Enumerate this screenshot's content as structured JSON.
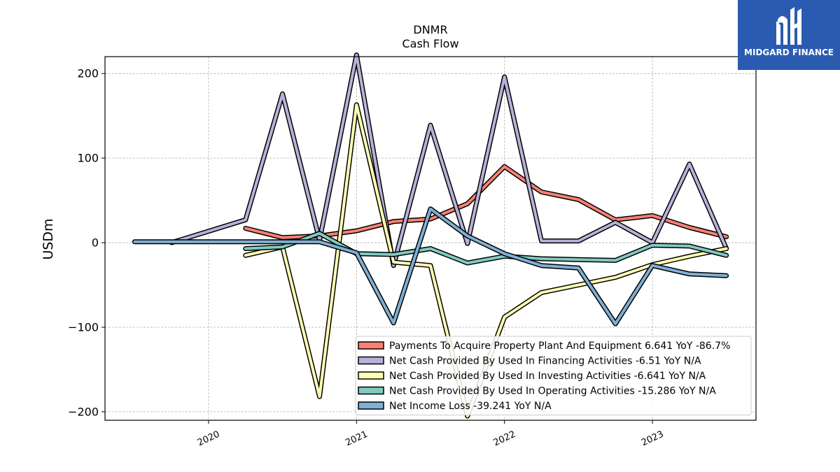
{
  "brand": {
    "name": "MIDGARD FINANCE",
    "logo_icon": "midgard-logo-icon",
    "color": "#2a5bb0"
  },
  "chart_data": {
    "type": "line",
    "title": "DNMR",
    "subtitle": "Cash Flow",
    "ylabel": "USDm",
    "xlabel": "",
    "ylim": [
      -210,
      220
    ],
    "xlim": [
      2019.3,
      2023.7
    ],
    "yticks": [
      -200,
      -100,
      0,
      100,
      200
    ],
    "ytick_labels": [
      "−200",
      "−100",
      "0",
      "100",
      "200"
    ],
    "xticks": [
      2020,
      2021,
      2022,
      2023
    ],
    "xtick_labels": [
      "2020",
      "2021",
      "2022",
      "2023"
    ],
    "grid": true,
    "legend_position": "lower-right",
    "series": [
      {
        "name": "Payments To Acquire Property Plant And Equipment  6.641 YoY -86.7%",
        "color": "#fa8072",
        "x": [
          2020.25,
          2020.5,
          2020.75,
          2021.0,
          2021.25,
          2021.5,
          2021.75,
          2022.0,
          2022.25,
          2022.5,
          2022.75,
          2023.0,
          2023.25,
          2023.5
        ],
        "y": [
          17,
          6,
          8,
          14,
          25,
          28,
          46,
          90,
          60,
          51,
          27,
          32,
          18,
          7
        ]
      },
      {
        "name": "Net Cash Provided By Used In Financing Activities  -6.51 YoY N/A",
        "color": "#b7b2d9",
        "x": [
          2019.75,
          2020.25,
          2020.5,
          2020.75,
          2021.0,
          2021.25,
          2021.5,
          2021.75,
          2022.0,
          2022.25,
          2022.5,
          2022.75,
          2023.0,
          2023.25,
          2023.5
        ],
        "y": [
          0,
          27,
          176,
          3,
          222,
          -27,
          139,
          -1,
          196,
          2,
          2,
          24,
          0,
          93,
          -7
        ]
      },
      {
        "name": "Net Cash Provided By Used In Investing Activities  -6.641 YoY N/A",
        "color": "#ffffb3",
        "x": [
          2020.25,
          2020.5,
          2020.75,
          2021.0,
          2021.25,
          2021.5,
          2021.75,
          2022.0,
          2022.25,
          2022.5,
          2022.75,
          2023.0,
          2023.25,
          2023.5
        ],
        "y": [
          -15,
          -5,
          -182,
          163,
          -23,
          -27,
          -205,
          -88,
          -59,
          -50,
          -41,
          -26,
          -16,
          -7
        ]
      },
      {
        "name": "Net Cash Provided By Used In Operating Activities  -15.286 YoY N/A",
        "color": "#80cbc0",
        "x": [
          2020.25,
          2020.5,
          2020.75,
          2021.0,
          2021.25,
          2021.5,
          2021.75,
          2022.0,
          2022.25,
          2022.5,
          2022.75,
          2023.0,
          2023.25,
          2023.5
        ],
        "y": [
          -7,
          -5,
          11,
          -13,
          -14,
          -7,
          -24,
          -16,
          -19,
          -20,
          -21,
          -3,
          -4,
          -15
        ]
      },
      {
        "name": "Net Income Loss  -39.241 YoY N/A",
        "color": "#7fb0d5",
        "x": [
          2019.5,
          2020.75,
          2021.0,
          2021.25,
          2021.5,
          2021.75,
          2022.0,
          2022.25,
          2022.5,
          2022.75,
          2023.0,
          2023.25,
          2023.5
        ],
        "y": [
          1,
          1,
          -12,
          -95,
          40,
          8,
          -13,
          -27,
          -30,
          -96,
          -27,
          -37,
          -39
        ]
      }
    ]
  }
}
